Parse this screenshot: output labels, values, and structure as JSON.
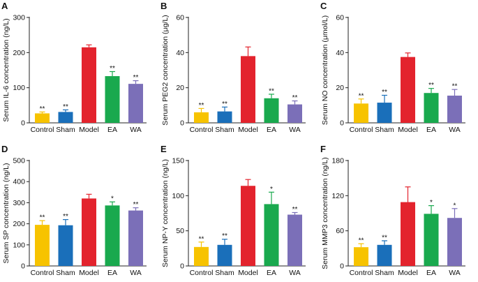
{
  "chart_data": [
    {
      "panel": "A",
      "type": "bar",
      "categories": [
        "Control",
        "Sham",
        "Model",
        "EA",
        "WA"
      ],
      "values": [
        27,
        31,
        215,
        133,
        111
      ],
      "errors": [
        4,
        6,
        7,
        13,
        9
      ],
      "significance": [
        "**",
        "**",
        "",
        "**",
        "**"
      ],
      "ylabel": "Serum IL-6 concentration (ng/L)",
      "ylim": [
        0,
        300
      ],
      "yticks": [
        "0",
        "100",
        "200",
        "300"
      ]
    },
    {
      "panel": "B",
      "type": "bar",
      "categories": [
        "Control",
        "Sham",
        "Model",
        "EA",
        "WA"
      ],
      "values": [
        6,
        6.5,
        38,
        14,
        10.5
      ],
      "errors": [
        2.2,
        2.5,
        5.2,
        2.3,
        2
      ],
      "significance": [
        "**",
        "**",
        "",
        "**",
        "**"
      ],
      "ylabel": "Serum PEG2 concentration (μg/L)",
      "ylim": [
        0,
        60
      ],
      "yticks": [
        "0",
        "20",
        "40",
        "60"
      ]
    },
    {
      "panel": "C",
      "type": "bar",
      "categories": [
        "Control",
        "Sham",
        "Model",
        "EA",
        "WA"
      ],
      "values": [
        11,
        11.5,
        37.5,
        17,
        15.5
      ],
      "errors": [
        2.6,
        4.2,
        2.3,
        2.6,
        3.5
      ],
      "significance": [
        "**",
        "**",
        "",
        "**",
        "**"
      ],
      "ylabel": "Serum NO concentration (μmol/L)",
      "ylim": [
        0,
        60
      ],
      "yticks": [
        "0",
        "20",
        "40",
        "60"
      ]
    },
    {
      "panel": "D",
      "type": "bar",
      "categories": [
        "Control",
        "Sham",
        "Model",
        "EA",
        "WA"
      ],
      "values": [
        195,
        193,
        320,
        287,
        263
      ],
      "errors": [
        20,
        27,
        20,
        17,
        13
      ],
      "significance": [
        "**",
        "**",
        "",
        "*",
        "**"
      ],
      "ylabel": "Serum SP concentration (ng/L)",
      "ylim": [
        0,
        500
      ],
      "yticks": [
        "0",
        "100",
        "200",
        "300",
        "400",
        "500"
      ]
    },
    {
      "panel": "E",
      "type": "bar",
      "categories": [
        "Control",
        "Sham",
        "Model",
        "EA",
        "WA"
      ],
      "values": [
        27,
        30,
        114,
        88,
        73
      ],
      "errors": [
        7,
        8,
        9,
        17,
        3
      ],
      "significance": [
        "**",
        "**",
        "",
        "*",
        "**"
      ],
      "ylabel": "Serum NP-Y concentration (ng/L)",
      "ylim": [
        0,
        150
      ],
      "yticks": [
        "0",
        "50",
        "100",
        "150"
      ]
    },
    {
      "panel": "F",
      "type": "bar",
      "categories": [
        "Control",
        "Sham",
        "Model",
        "EA",
        "WA"
      ],
      "values": [
        32,
        36,
        109,
        89,
        82
      ],
      "errors": [
        6,
        7,
        26,
        14,
        16
      ],
      "significance": [
        "**",
        "**",
        "",
        "*",
        "*"
      ],
      "ylabel": "Serum MMP3 concentration (ng/L)",
      "ylim": [
        0,
        180
      ],
      "yticks": [
        "0",
        "60",
        "120",
        "180"
      ]
    }
  ],
  "colors": [
    "#f7c300",
    "#1a6fba",
    "#e3232d",
    "#19a94e",
    "#7b6fb8"
  ]
}
